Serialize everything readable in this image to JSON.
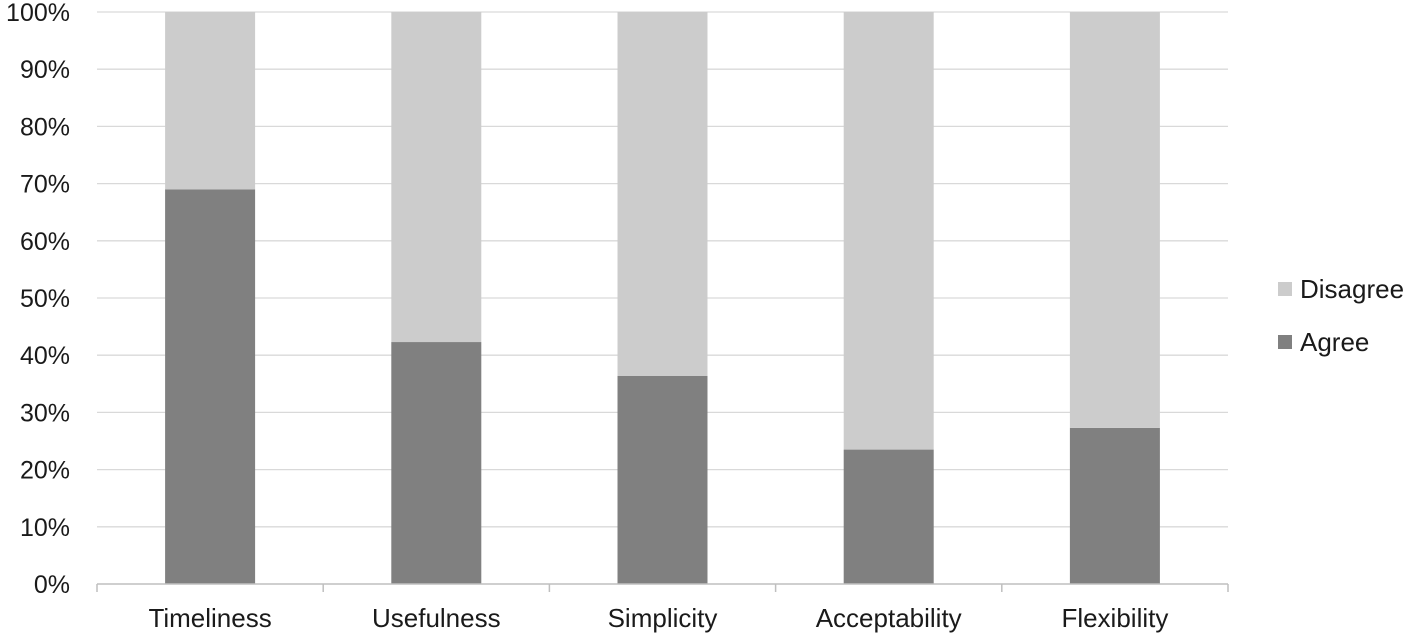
{
  "chart_data": {
    "type": "bar",
    "stacked": true,
    "percent_stacked": true,
    "categories": [
      "Timeliness",
      "Usefulness",
      "Simplicity",
      "Acceptability",
      "Flexibility"
    ],
    "series": [
      {
        "name": "Agree",
        "values": [
          69,
          42.3,
          36.4,
          23.5,
          27.3
        ],
        "color": "#808080"
      },
      {
        "name": "Disagree",
        "values": [
          31,
          57.7,
          63.6,
          76.5,
          72.7
        ],
        "color": "#cccccc"
      }
    ],
    "ylim": [
      0,
      100
    ],
    "yticks": [
      "0%",
      "10%",
      "20%",
      "30%",
      "40%",
      "50%",
      "60%",
      "70%",
      "80%",
      "90%",
      "100%"
    ],
    "grid": true,
    "legend_position": "right",
    "legend_order": [
      "Disagree",
      "Agree"
    ],
    "gridline_color": "#d9d9d9",
    "axis_color": "#bfbfbf"
  }
}
